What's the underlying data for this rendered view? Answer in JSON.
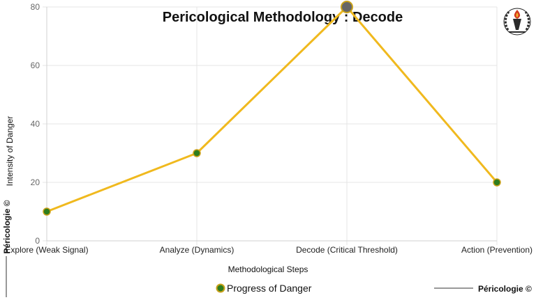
{
  "chart_data": {
    "type": "line",
    "title": "Pericological Methodology : Decode",
    "xlabel": "Methodological Steps",
    "ylabel": "Intensity of Danger",
    "categories": [
      "Explore (Weak Signal)",
      "Analyze (Dynamics)",
      "Decode (Critical Threshold)",
      "Action (Prevention)"
    ],
    "series": [
      {
        "name": "Progress of Danger",
        "values": [
          10,
          30,
          80,
          20
        ]
      }
    ],
    "highlight_index": 2,
    "ylim": [
      0,
      80
    ],
    "yticks": [
      0,
      20,
      40,
      60,
      80
    ],
    "grid": true,
    "legend": "bottom-center",
    "colors": {
      "line": "#f0b91e",
      "point": "#2e7d1e",
      "point_border": "#c9a11a",
      "highlight": "#666666"
    }
  },
  "watermark": {
    "side_text": "Péricologie ©",
    "corner_text": "Péricologie ©"
  },
  "logo": {
    "icon": "torch-laurel-logo-icon"
  }
}
